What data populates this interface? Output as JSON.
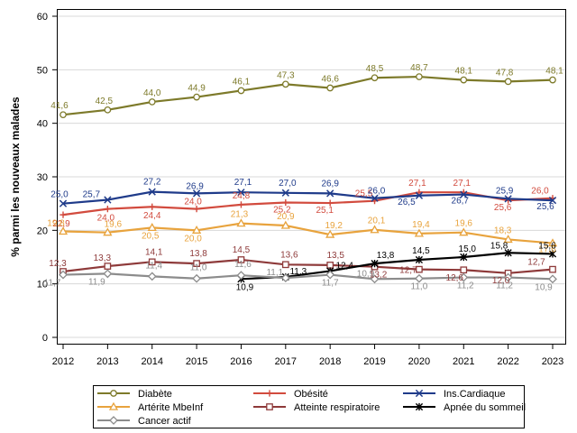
{
  "chart_data": {
    "type": "line",
    "title": "",
    "xlabel": "",
    "ylabel": "% parmi les nouveaux malades",
    "ylim": [
      0,
      60
    ],
    "yticks": [
      0,
      10,
      20,
      30,
      40,
      50,
      60
    ],
    "grid": "horizontal",
    "categories": [
      2012,
      2013,
      2014,
      2015,
      2016,
      2017,
      2018,
      2019,
      2020,
      2021,
      2022,
      2023
    ],
    "series": [
      {
        "name": "Diabète",
        "color": "#7d7a2a",
        "marker": "circle",
        "values": [
          41.6,
          42.5,
          44.0,
          44.9,
          46.1,
          47.3,
          46.6,
          48.5,
          48.7,
          48.1,
          47.8,
          48.1
        ],
        "labels": [
          "41,6",
          "42,5",
          "44,0",
          "44,9",
          "46,1",
          "47,3",
          "46,6",
          "48,5",
          "48,7",
          "48,1",
          "47,8",
          "48,1"
        ]
      },
      {
        "name": "Obésité",
        "color": "#d24b3e",
        "marker": "plus",
        "values": [
          22.9,
          24.0,
          24.4,
          24.0,
          24.8,
          25.2,
          25.1,
          25.5,
          27.1,
          27.1,
          25.6,
          26.0
        ],
        "labels": [
          "22,9",
          "24,0",
          "24,4",
          "24,0",
          "24,8",
          "25,2",
          "25,1",
          "25,5",
          "27,1",
          "27,1",
          "25,6",
          "26,0"
        ]
      },
      {
        "name": "Ins.Cardiaque",
        "color": "#1f3b8a",
        "marker": "x",
        "values": [
          25.0,
          25.7,
          27.2,
          26.9,
          27.1,
          27.0,
          26.9,
          26.0,
          26.5,
          26.7,
          25.9,
          25.6
        ],
        "labels": [
          "25,0",
          "25,7",
          "27,2",
          "26,9",
          "27,1",
          "27,0",
          "26,9",
          "26,0",
          "26,5",
          "26,7",
          "25,9",
          "25,6"
        ]
      },
      {
        "name": "Artérite MbeInf",
        "color": "#e8a33d",
        "marker": "triangle",
        "values": [
          19.8,
          19.6,
          20.5,
          20.0,
          21.3,
          20.9,
          19.2,
          20.1,
          19.4,
          19.6,
          18.3,
          17.6
        ],
        "labels": [
          "19,8",
          "19,6",
          "20,5",
          "20,0",
          "21,3",
          "20,9",
          "19,2",
          "20,1",
          "19,4",
          "19,6",
          "18,3",
          "17,6"
        ]
      },
      {
        "name": "Atteinte respiratoire",
        "color": "#8e3a3a",
        "marker": "square",
        "values": [
          12.3,
          13.3,
          14.1,
          13.8,
          14.5,
          13.6,
          13.5,
          13.2,
          12.7,
          12.6,
          12.0,
          12.7
        ],
        "labels": [
          "12,3",
          "13,3",
          "14,1",
          "13,8",
          "14,5",
          "13,6",
          "13,5",
          "13,2",
          "12,7",
          "12,6",
          "12,0",
          "12,7"
        ]
      },
      {
        "name": "Apnée du sommeil",
        "color": "#000000",
        "marker": "star",
        "values": [
          null,
          null,
          null,
          null,
          10.9,
          11.3,
          12.4,
          13.8,
          14.5,
          15.0,
          15.8,
          15.6
        ],
        "labels": [
          "",
          "",
          "",
          "",
          "10,9",
          "11,3",
          "12,4",
          "13,8",
          "14,5",
          "15,0",
          "15,8",
          "15,6"
        ]
      },
      {
        "name": "Cancer actif",
        "color": "#8c8c8c",
        "marker": "diamond",
        "values": [
          11.7,
          11.9,
          11.4,
          11.0,
          11.6,
          11.1,
          11.7,
          10.9,
          11.0,
          11.2,
          11.2,
          10.9
        ],
        "labels": [
          "11,7",
          "11,9",
          "11,4",
          "11,0",
          "11,6",
          "11,1",
          "11,7",
          "10,9",
          "11,0",
          "11,2",
          "11,2",
          "10,9"
        ]
      }
    ]
  }
}
